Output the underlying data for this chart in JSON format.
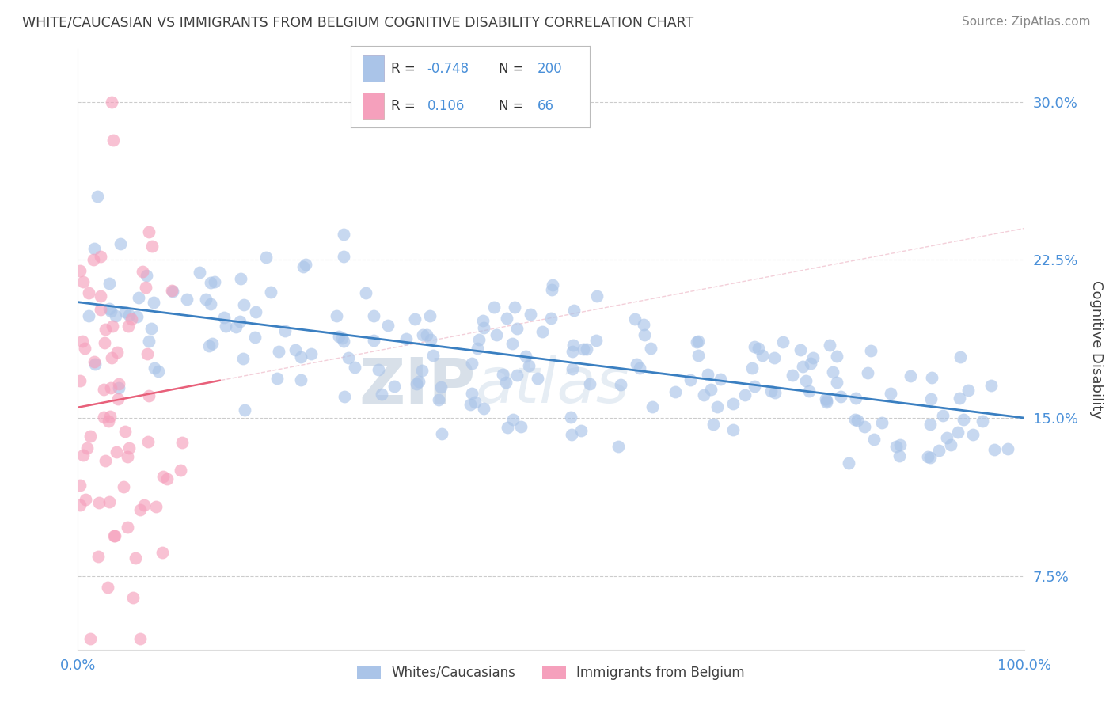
{
  "title": "WHITE/CAUCASIAN VS IMMIGRANTS FROM BELGIUM COGNITIVE DISABILITY CORRELATION CHART",
  "source": "Source: ZipAtlas.com",
  "ylabel": "Cognitive Disability",
  "xlim": [
    0.0,
    1.0
  ],
  "ylim": [
    0.04,
    0.325
  ],
  "yticks": [
    0.075,
    0.15,
    0.225,
    0.3
  ],
  "ytick_labels": [
    "7.5%",
    "15.0%",
    "22.5%",
    "30.0%"
  ],
  "xticks": [
    0.0,
    1.0
  ],
  "xtick_labels": [
    "0.0%",
    "100.0%"
  ],
  "blue_dot_color": "#aac4e8",
  "pink_dot_color": "#f5a0bc",
  "blue_line_color": "#3a7fc1",
  "pink_line_color": "#e8607a",
  "gray_dash_color": "#cccccc",
  "R_blue": -0.748,
  "N_blue": 200,
  "R_pink": 0.106,
  "N_pink": 66,
  "blue_intercept": 0.205,
  "blue_slope": -0.055,
  "pink_intercept": 0.155,
  "pink_slope": 0.085,
  "background_color": "#ffffff",
  "grid_color": "#cccccc",
  "title_color": "#404040",
  "tick_label_color": "#4a90d9",
  "watermark_color": "#d0dff0",
  "legend_label_blue": "Whites/Caucasians",
  "legend_label_pink": "Immigrants from Belgium"
}
